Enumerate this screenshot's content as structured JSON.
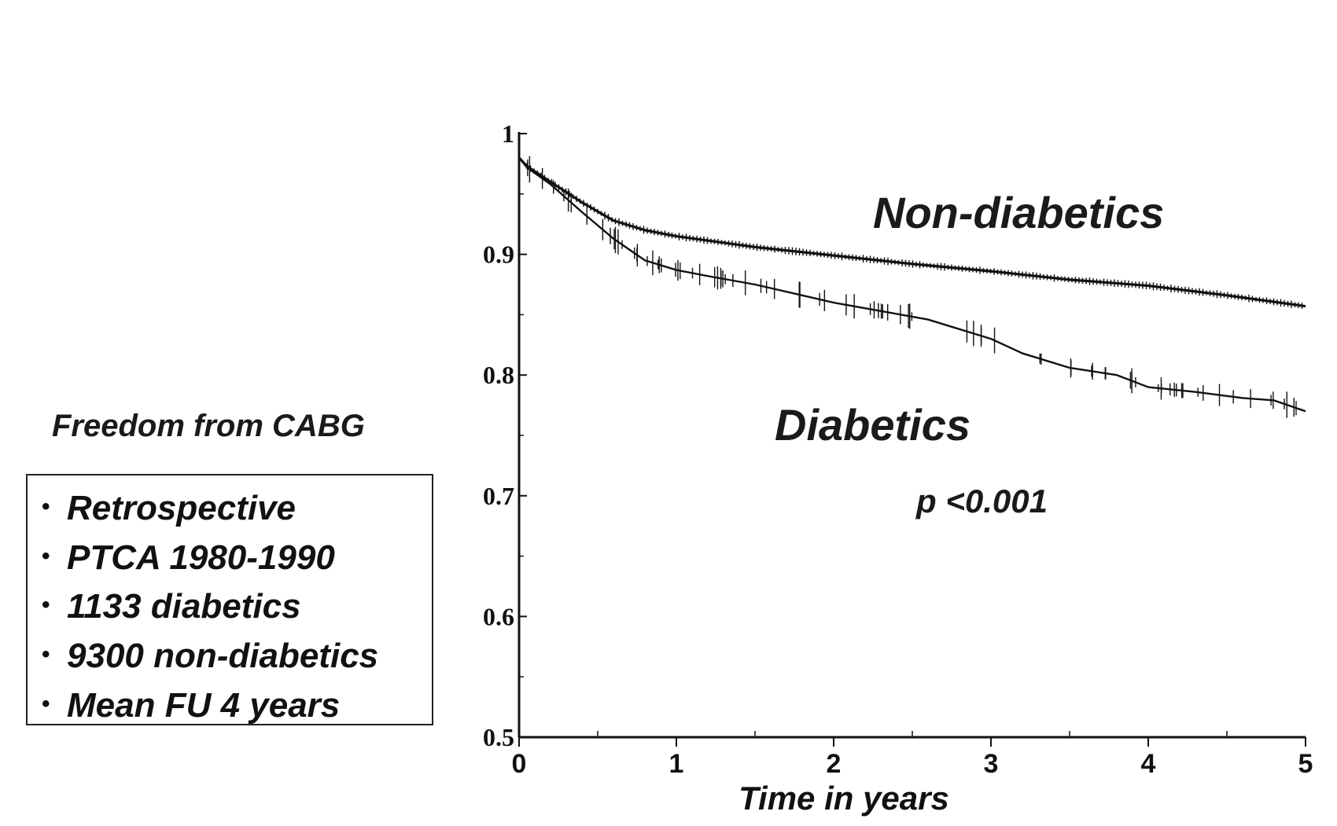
{
  "panel": {
    "title": "Freedom from CABG",
    "bullet_glyph": "•",
    "items": [
      "Retrospective",
      "PTCA 1980-1990",
      "1133 diabetics",
      "9300 non-diabetics",
      "Mean FU 4 years"
    ]
  },
  "chart_data": {
    "type": "line",
    "title": "Freedom from CABG",
    "xlabel": "Time in years",
    "ylabel": "",
    "xlim": [
      0,
      5
    ],
    "ylim": [
      0.5,
      1.0
    ],
    "x_ticks": [
      0,
      1,
      2,
      3,
      4,
      5
    ],
    "x_tick_labels": [
      "0",
      "1",
      "2",
      "3",
      "4",
      "5"
    ],
    "y_ticks": [
      0.5,
      0.6,
      0.7,
      0.8,
      0.9,
      1.0
    ],
    "y_tick_labels": [
      "0.5",
      "0.6",
      "0.7",
      "0.8",
      "0.9",
      "1"
    ],
    "grid": false,
    "series": [
      {
        "name": "Non-diabetics",
        "x": [
          0,
          0.05,
          0.2,
          0.4,
          0.6,
          0.8,
          1.0,
          1.5,
          2.0,
          2.5,
          3.0,
          3.5,
          4.0,
          4.5,
          5.0
        ],
        "y": [
          0.98,
          0.973,
          0.96,
          0.943,
          0.928,
          0.92,
          0.915,
          0.906,
          0.899,
          0.892,
          0.886,
          0.879,
          0.874,
          0.866,
          0.857
        ]
      },
      {
        "name": "Diabetics",
        "x": [
          0,
          0.05,
          0.2,
          0.4,
          0.6,
          0.8,
          1.0,
          1.2,
          1.5,
          1.8,
          2.0,
          2.3,
          2.6,
          3.0,
          3.2,
          3.5,
          3.8,
          4.0,
          4.3,
          4.6,
          4.8,
          5.0
        ],
        "y": [
          0.98,
          0.972,
          0.958,
          0.935,
          0.913,
          0.895,
          0.887,
          0.882,
          0.875,
          0.866,
          0.86,
          0.853,
          0.846,
          0.83,
          0.818,
          0.806,
          0.8,
          0.79,
          0.786,
          0.781,
          0.779,
          0.77
        ]
      }
    ],
    "series_labels": [
      "Non-diabetics",
      "Diabetics"
    ],
    "annotations": [
      "p <0.001"
    ]
  }
}
